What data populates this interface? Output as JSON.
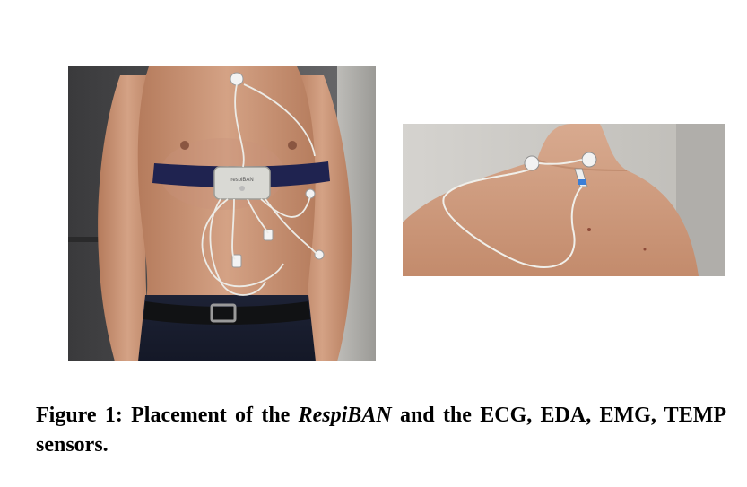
{
  "figure": {
    "label": "Figure 1:",
    "caption_part1": "Placement of the",
    "caption_emphasis": "RespiBAN",
    "caption_part2": "and the ECG, EDA, EMG, TEMP sensors.",
    "front_photo": {
      "description_icon": "torso-front-photo",
      "device_label": "respiBAN"
    },
    "back_photo": {
      "description_icon": "upper-back-photo"
    }
  }
}
